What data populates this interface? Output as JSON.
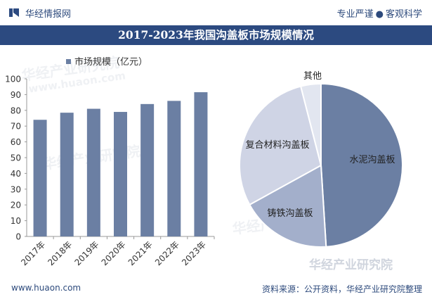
{
  "header": {
    "brand": "华经情报网",
    "slogan_left": "专业严谨",
    "slogan_dot": "●",
    "slogan_right": "客观科学"
  },
  "title": "2017-2023年我国沟盖板市场规模情况",
  "footer": {
    "url": "www.huaon.com",
    "source": "资料来源：公开资料，华经产业研究院整理"
  },
  "watermark": {
    "text_cn": "华经产业研究院",
    "text_en": "www.huaon.com"
  },
  "colors": {
    "brand": "#2c4a80",
    "bar": "#6b7fa3",
    "pie_slices": [
      "#6b7fa3",
      "#a3afcb",
      "#cfd4e5",
      "#e2e6f0"
    ]
  },
  "chart_data": [
    {
      "type": "bar",
      "legend": [
        "市场规模（亿元）"
      ],
      "categories": [
        "2017年",
        "2018年",
        "2019年",
        "2020年",
        "2021年",
        "2022年",
        "2023年"
      ],
      "series": [
        {
          "name": "市场规模（亿元）",
          "values": [
            74,
            78.5,
            81,
            79,
            84,
            86,
            91.5
          ]
        }
      ],
      "ylim": [
        0,
        100
      ],
      "yticks": [
        0,
        10,
        20,
        30,
        40,
        50,
        60,
        70,
        80,
        90,
        100
      ],
      "legend_position": "top-left",
      "grid": false
    },
    {
      "type": "pie",
      "labels": [
        "水泥沟盖板",
        "铸铁沟盖板",
        "复合材料沟盖板",
        "其他"
      ],
      "values": [
        49,
        18,
        29,
        4
      ]
    }
  ]
}
